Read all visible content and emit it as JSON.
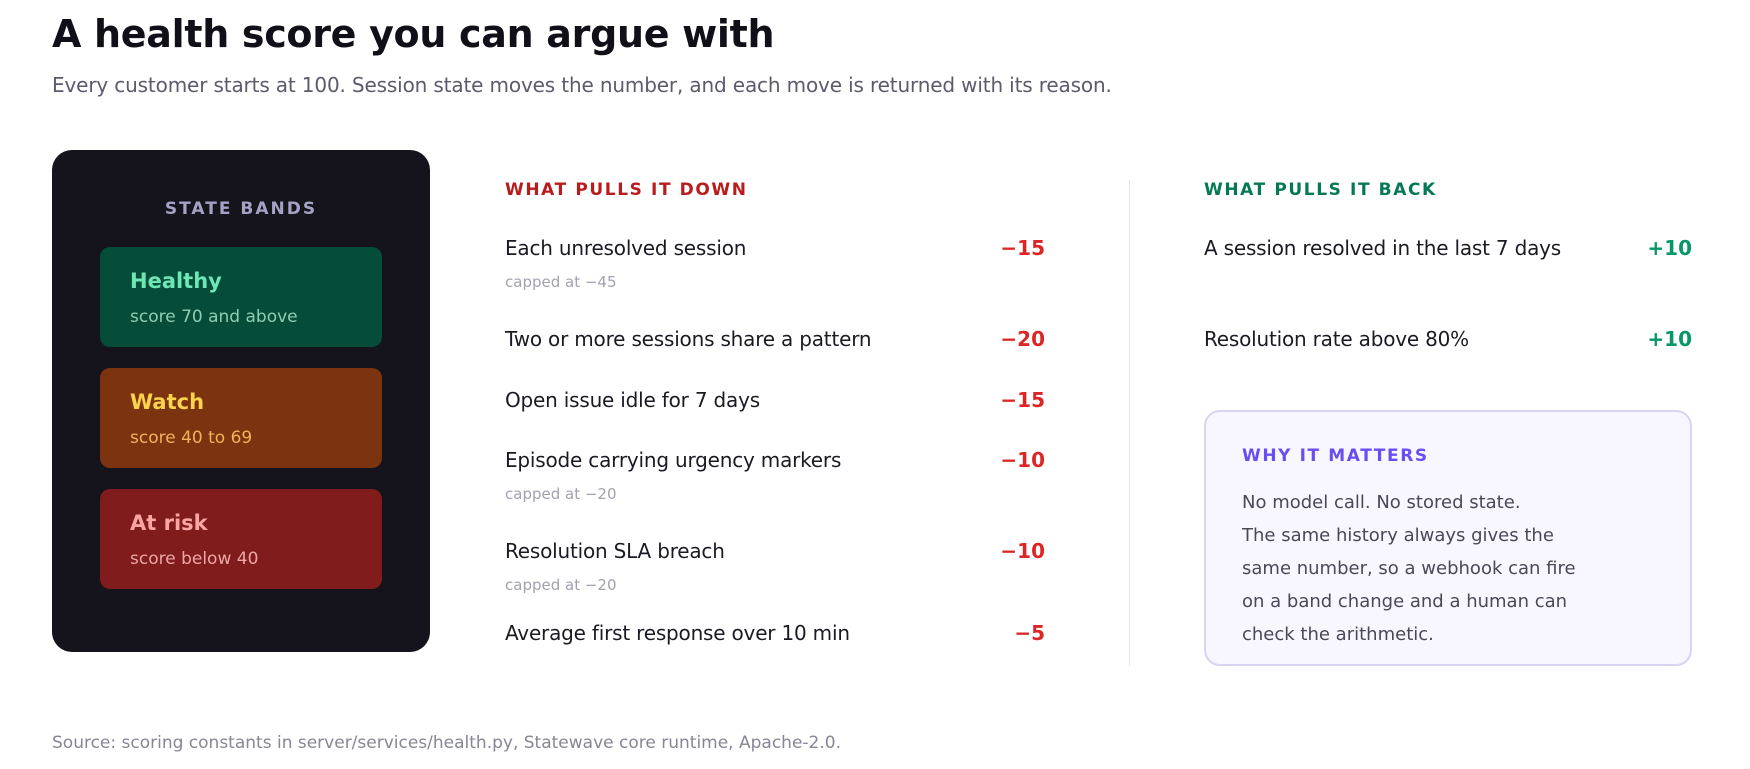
{
  "header": {
    "title": "A health score you can argue with",
    "subtitle": "Every customer starts at 100. Session state moves the number, and each move is returned with its reason."
  },
  "bands_panel": {
    "title": "STATE BANDS",
    "bands": [
      {
        "name": "Healthy",
        "desc": "score 70 and above",
        "bg": "#064d39",
        "name_color": "#6ee7b7",
        "desc_color": "#8fcdb1"
      },
      {
        "name": "Watch",
        "desc": "score 40 to 69",
        "bg": "#7c3410",
        "name_color": "#fcd34d",
        "desc_color": "#f2b15a"
      },
      {
        "name": "At risk",
        "desc": "score below 40",
        "bg": "#801c1c",
        "name_color": "#fca5a5",
        "desc_color": "#eca6a6"
      }
    ]
  },
  "pulls_down": {
    "heading": "WHAT PULLS IT DOWN",
    "color": "#b91c1c",
    "value_color": "#dc2626",
    "rows": [
      {
        "label": "Each unresolved session",
        "value": "−15",
        "cap": "capped at −45"
      },
      {
        "label": "Two or more sessions share a pattern",
        "value": "−20",
        "cap": ""
      },
      {
        "label": "Open issue idle for 7 days",
        "value": "−15",
        "cap": ""
      },
      {
        "label": "Episode carrying urgency markers",
        "value": "−10",
        "cap": "capped at −20"
      },
      {
        "label": "Resolution SLA breach",
        "value": "−10",
        "cap": "capped at −20"
      },
      {
        "label": "Average first response over 10 min",
        "value": "−5",
        "cap": ""
      }
    ]
  },
  "pulls_back": {
    "heading": "WHAT PULLS IT BACK",
    "color": "#047857",
    "value_color": "#059669",
    "rows": [
      {
        "label": "A session resolved in the last 7 days",
        "value": "+10"
      },
      {
        "label": "Resolution rate above 80%",
        "value": "+10"
      }
    ]
  },
  "why_it_matters": {
    "title": "WHY IT MATTERS",
    "lines": [
      "No model call. No stored state.",
      "The same history always gives the",
      "same number, so a webhook can fire",
      "on a band change and a human can",
      "check the arithmetic."
    ]
  },
  "footer": {
    "source": "Source: scoring constants in server/services/health.py, Statewave core runtime, Apache-2.0."
  }
}
